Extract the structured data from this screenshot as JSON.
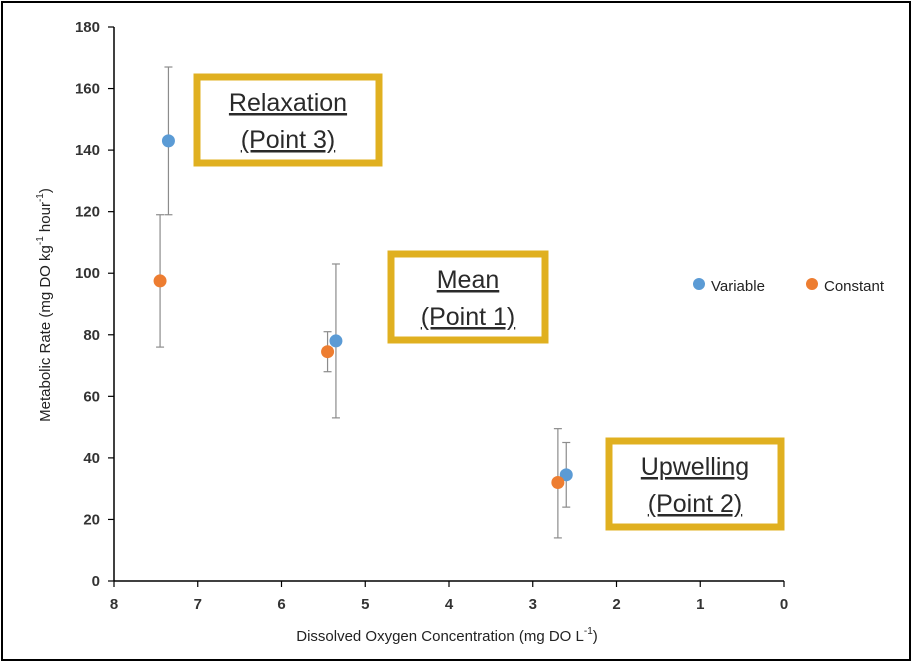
{
  "chart_data": {
    "type": "scatter",
    "xlabel": "Dissolved Oxygen Concentration (mg DO L",
    "xlabel_sup": "-1",
    "xlabel_end": ")",
    "ylabel_parts": [
      "Metabolic Rate (mg DO  kg",
      "-1",
      " hour",
      "-1",
      ")"
    ],
    "xlim": [
      8,
      0
    ],
    "ylim": [
      0,
      180
    ],
    "x_reversed": true,
    "x_ticks": [
      8,
      7,
      6,
      5,
      4,
      3,
      2,
      1,
      0
    ],
    "y_ticks": [
      0,
      20,
      40,
      60,
      80,
      100,
      120,
      140,
      160,
      180
    ],
    "grid": false,
    "legend_position": "right",
    "series": [
      {
        "name": "Variable",
        "color": "#5b9bd5",
        "points": [
          {
            "x": 7.35,
            "y": 143,
            "err_low": 119,
            "err_high": 167
          },
          {
            "x": 5.35,
            "y": 78,
            "err_low": 53,
            "err_high": 103
          },
          {
            "x": 2.6,
            "y": 34.5,
            "err_low": 24,
            "err_high": 45
          }
        ]
      },
      {
        "name": "Constant",
        "color": "#ed7d31",
        "points": [
          {
            "x": 7.45,
            "y": 97.5,
            "err_low": 76,
            "err_high": 119
          },
          {
            "x": 5.45,
            "y": 74.5,
            "err_low": 68,
            "err_high": 81
          },
          {
            "x": 2.7,
            "y": 32,
            "err_low": 14,
            "err_high": 49.5
          }
        ]
      }
    ],
    "annotations": [
      {
        "id": "relaxation",
        "line1": "Relaxation",
        "line2": "(Point 3)",
        "border": "#e0b020"
      },
      {
        "id": "mean",
        "line1": "Mean",
        "line2": "(Point 1)",
        "border": "#e0b020"
      },
      {
        "id": "upwelling",
        "line1": "Upwelling",
        "line2": "(Point 2)",
        "border": "#e0b020"
      }
    ]
  }
}
